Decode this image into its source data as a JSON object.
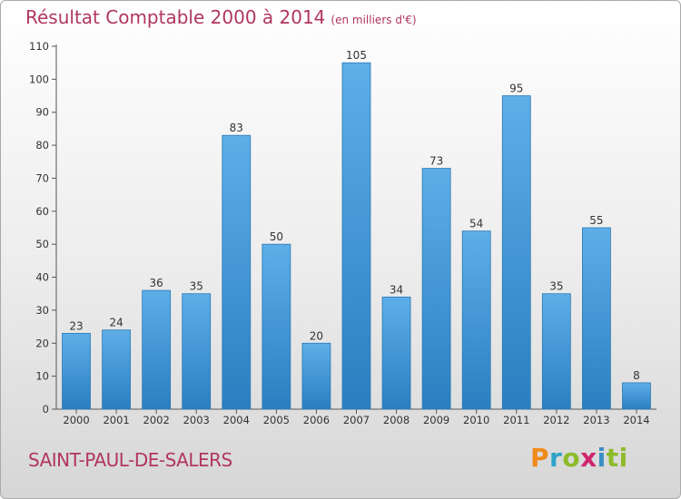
{
  "header": {
    "title": "Résultat Comptable 2000 à 2014",
    "subtitle": "(en milliers d'€)"
  },
  "footer": {
    "commune": "SAINT-PAUL-DE-SALERS",
    "logo_letters": [
      "P",
      "r",
      "o",
      "x",
      "i",
      "t",
      "i"
    ]
  },
  "colors": {
    "bar_light": "#5eaee8",
    "bar_dark": "#2a7fc0",
    "title": "#b1365e"
  },
  "chart_data": {
    "type": "bar",
    "title": "Résultat Comptable 2000 à 2014",
    "subtitle": "(en milliers d'€)",
    "xlabel": "",
    "ylabel": "",
    "categories": [
      "2000",
      "2001",
      "2002",
      "2003",
      "2004",
      "2005",
      "2006",
      "2007",
      "2008",
      "2009",
      "2010",
      "2011",
      "2012",
      "2013",
      "2014"
    ],
    "values": [
      23,
      24,
      36,
      35,
      83,
      50,
      20,
      105,
      34,
      73,
      54,
      95,
      35,
      55,
      8
    ],
    "ylim": [
      0,
      110
    ],
    "yticks": [
      0,
      10,
      20,
      30,
      40,
      50,
      60,
      70,
      80,
      90,
      100,
      110
    ],
    "grid": false,
    "data_labels": true
  }
}
